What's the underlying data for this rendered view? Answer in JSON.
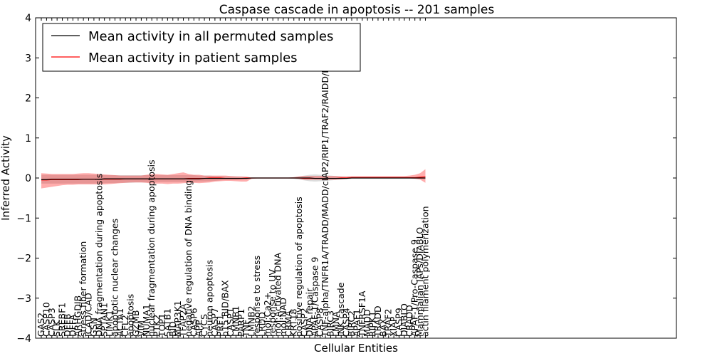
{
  "chart_data": {
    "type": "line",
    "title": "Caspase cascade in apoptosis -- 201 samples",
    "xlabel": "Cellular Entities",
    "ylabel": "Inferred Activity",
    "ylim": [
      -4,
      4
    ],
    "yticks": [
      4,
      3,
      2,
      1,
      0,
      -1,
      -2,
      -3,
      -4
    ],
    "ytick_labels": [
      "4",
      "3",
      "2",
      "1",
      "0",
      "−1",
      "−2",
      "−3",
      "−4"
    ],
    "legend_position": "top-left",
    "categories": [
      "GAS2",
      "CASP10",
      "CASP3",
      "SLK",
      "SREBF1",
      "DFFB",
      "DFFA",
      "ARHGDIB",
      "stress fiber formation",
      "ICAD/CAD",
      "GSN",
      "DNA fragmentation during apoptosis",
      "SPTAN1",
      "LIMK1",
      "apoptotic nuclear changes",
      "ACTA1",
      "CFL2",
      "apoptosis",
      "GZMB",
      "VIM",
      "NUMA1",
      "nuclear fragmentation during apoptosis",
      "PTK2",
      "TOP1",
      "SATB1",
      "BID",
      "MAP3K1",
      "TFAP2A",
      "negative regulation of DNA binding",
      "CASP6",
      "APP",
      "CYCS",
      "neuron apoptosis",
      "CASP7",
      "PRF1",
      "p15 BID/BAX",
      "CASP1",
      "LMNB1",
      "PARP1",
      "TNF",
      "LMNB2",
      "response to stress",
      "LRDD",
      "mol:Ca2+",
      "response to UV",
      "mol:Activated DNA",
      "mol:NAD",
      "CRMA",
      "KRT18",
      "positive regulation of apoptosis",
      "CASP2",
      "DNA repair",
      "APAF-1/Caspase 9",
      "CASP8",
      "TNF-alpha/TNFR1A/TRADD/MADD/cIAP2/RIP1/TRAF2/RAIDD/PIDD",
      "BIRC3",
      "LMNA",
      "JNK cascade",
      "CASP4",
      "BIRC2",
      "APAF1",
      "TNFRSF1A",
      "MADD",
      "RIPK1",
      "TRADD",
      "BAX",
      "TRAF2",
      "XIAP",
      "CASP9",
      "DIABLO",
      "CRADD",
      "APAF-1/Pro-Caspase 9",
      "Mammalian IAPs/DIABLO",
      "actin filament polymerization"
    ],
    "series": [
      {
        "name": "Mean activity in all permuted samples",
        "color": "#000000",
        "values": [
          -0.04,
          -0.04,
          -0.03,
          -0.03,
          -0.03,
          -0.03,
          -0.03,
          -0.03,
          -0.03,
          -0.03,
          -0.03,
          -0.03,
          -0.02,
          -0.02,
          -0.02,
          -0.02,
          -0.02,
          -0.02,
          -0.02,
          -0.02,
          -0.02,
          -0.02,
          -0.02,
          -0.02,
          -0.02,
          -0.02,
          -0.02,
          -0.02,
          -0.02,
          -0.02,
          -0.02,
          -0.01,
          -0.01,
          -0.01,
          -0.01,
          -0.01,
          -0.01,
          -0.01,
          -0.01,
          -0.01,
          0,
          0,
          0,
          0,
          0,
          0,
          0,
          0,
          0,
          0,
          0,
          0,
          -0.01,
          -0.01,
          -0.01,
          -0.01,
          -0.01,
          -0.01,
          -0.01,
          0,
          0,
          0,
          0,
          0,
          0,
          0,
          0,
          0,
          0,
          0,
          0,
          0,
          0,
          0
        ],
        "band_lower": [
          -0.14,
          -0.14,
          -0.14,
          -0.14,
          -0.14,
          -0.14,
          -0.14,
          -0.14,
          -0.14,
          -0.14,
          -0.14,
          -0.13,
          -0.13,
          -0.13,
          -0.13,
          -0.12,
          -0.12,
          -0.12,
          -0.11,
          -0.11,
          -0.11,
          -0.11,
          -0.1,
          -0.1,
          -0.1,
          -0.1,
          -0.1,
          -0.1,
          -0.1,
          -0.1,
          -0.09,
          -0.09,
          -0.08,
          -0.07,
          -0.06,
          -0.05,
          -0.05,
          -0.05,
          -0.04,
          -0.03,
          -0.01,
          -0.01,
          -0.01,
          -0.01,
          -0.01,
          -0.01,
          -0.01,
          -0.01,
          -0.02,
          -0.04,
          -0.06,
          -0.08,
          -0.09,
          -0.08,
          -0.07,
          -0.06,
          -0.05,
          -0.04,
          -0.03,
          -0.02,
          -0.02,
          -0.02,
          -0.02,
          -0.02,
          -0.02,
          -0.02,
          -0.02,
          -0.02,
          -0.02,
          -0.02,
          -0.02,
          -0.02,
          -0.02,
          -0.03
        ],
        "band_upper": [
          0.08,
          0.08,
          0.08,
          0.08,
          0.08,
          0.08,
          0.08,
          0.08,
          0.08,
          0.08,
          0.08,
          0.08,
          0.07,
          0.07,
          0.07,
          0.07,
          0.07,
          0.07,
          0.07,
          0.07,
          0.07,
          0.07,
          0.07,
          0.07,
          0.07,
          0.07,
          0.07,
          0.07,
          0.07,
          0.07,
          0.06,
          0.06,
          0.06,
          0.05,
          0.05,
          0.04,
          0.04,
          0.04,
          0.03,
          0.03,
          0.01,
          0.01,
          0.01,
          0.01,
          0.01,
          0.01,
          0.01,
          0.01,
          0.02,
          0.04,
          0.06,
          0.08,
          0.09,
          0.08,
          0.07,
          0.06,
          0.05,
          0.04,
          0.03,
          0.02,
          0.02,
          0.02,
          0.02,
          0.02,
          0.02,
          0.02,
          0.02,
          0.02,
          0.02,
          0.02,
          0.02,
          0.02,
          0.02,
          0.03
        ]
      },
      {
        "name": "Mean activity in patient samples",
        "color": "#ff0000",
        "values": [
          -0.05,
          -0.05,
          -0.04,
          -0.04,
          -0.04,
          -0.04,
          -0.04,
          -0.04,
          -0.03,
          -0.03,
          -0.03,
          -0.03,
          -0.03,
          -0.03,
          -0.03,
          -0.03,
          -0.02,
          -0.02,
          -0.02,
          -0.02,
          -0.02,
          -0.02,
          -0.02,
          -0.02,
          -0.02,
          -0.02,
          -0.02,
          -0.02,
          -0.01,
          -0.01,
          -0.01,
          -0.01,
          0,
          0,
          0,
          -0.01,
          -0.01,
          -0.01,
          -0.01,
          0,
          0,
          0,
          0,
          0,
          0,
          0,
          0,
          0,
          0,
          0,
          -0.01,
          -0.01,
          -0.01,
          -0.01,
          -0.01,
          -0.01,
          -0.01,
          0,
          0,
          0.01,
          0.01,
          0.01,
          0.01,
          0.01,
          0.01,
          0.01,
          0.01,
          0.01,
          0.01,
          0.01,
          0.01,
          0.01,
          0.02,
          0.03
        ],
        "band_lower": [
          -0.26,
          -0.24,
          -0.22,
          -0.2,
          -0.18,
          -0.17,
          -0.17,
          -0.16,
          -0.16,
          -0.16,
          -0.16,
          -0.16,
          -0.16,
          -0.15,
          -0.14,
          -0.13,
          -0.12,
          -0.11,
          -0.11,
          -0.11,
          -0.12,
          -0.14,
          -0.14,
          -0.14,
          -0.15,
          -0.14,
          -0.14,
          -0.13,
          -0.12,
          -0.12,
          -0.13,
          -0.12,
          -0.11,
          -0.09,
          -0.08,
          -0.07,
          -0.07,
          -0.08,
          -0.09,
          -0.09,
          -0.02,
          -0.01,
          -0.01,
          -0.01,
          -0.01,
          -0.01,
          -0.01,
          -0.01,
          -0.01,
          -0.02,
          -0.04,
          -0.04,
          -0.04,
          -0.04,
          -0.04,
          -0.04,
          -0.04,
          -0.03,
          -0.02,
          -0.01,
          -0.01,
          -0.01,
          -0.01,
          -0.01,
          -0.01,
          -0.01,
          -0.01,
          -0.01,
          -0.01,
          -0.01,
          -0.01,
          -0.02,
          -0.04,
          -0.12
        ],
        "band_upper": [
          0.12,
          0.11,
          0.1,
          0.1,
          0.1,
          0.1,
          0.1,
          0.11,
          0.12,
          0.12,
          0.11,
          0.1,
          0.09,
          0.08,
          0.07,
          0.06,
          0.06,
          0.06,
          0.06,
          0.06,
          0.08,
          0.1,
          0.1,
          0.09,
          0.08,
          0.1,
          0.12,
          0.14,
          0.1,
          0.08,
          0.08,
          0.06,
          0.06,
          0.06,
          0.06,
          0.06,
          0.05,
          0.04,
          0.04,
          0.03,
          0.01,
          0.01,
          0.01,
          0.01,
          0.01,
          0.01,
          0.01,
          0.01,
          0.02,
          0.04,
          0.05,
          0.05,
          0.05,
          0.05,
          0.05,
          0.05,
          0.05,
          0.04,
          0.04,
          0.05,
          0.05,
          0.05,
          0.05,
          0.05,
          0.05,
          0.05,
          0.05,
          0.05,
          0.05,
          0.05,
          0.06,
          0.08,
          0.12,
          0.22
        ]
      }
    ]
  }
}
